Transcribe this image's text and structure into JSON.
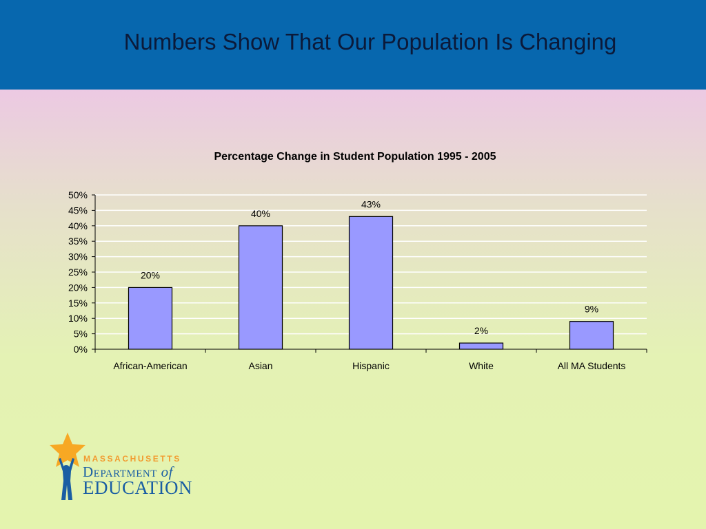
{
  "slide": {
    "title": "Numbers Show That Our Population Is Changing",
    "header_color": "#0767ae"
  },
  "chart_data": {
    "type": "bar",
    "title": "Percentage Change in Student Population 1995 - 2005",
    "xlabel": "",
    "ylabel": "",
    "categories": [
      "African-American",
      "Asian",
      "Hispanic",
      "White",
      "All MA Students"
    ],
    "values": [
      20,
      40,
      43,
      2,
      9
    ],
    "data_labels": [
      "20%",
      "40%",
      "43%",
      "2%",
      "9%"
    ],
    "ylim": [
      0,
      50
    ],
    "yticks": [
      0,
      5,
      10,
      15,
      20,
      25,
      30,
      35,
      40,
      45,
      50
    ],
    "ytick_labels": [
      "0%",
      "5%",
      "10%",
      "15%",
      "20%",
      "25%",
      "30%",
      "35%",
      "40%",
      "45%",
      "50%"
    ],
    "bar_color": "#9999ff",
    "grid": true,
    "legend": false
  },
  "logo": {
    "line1": "MASSACHUSETTS",
    "line2_main": "Department",
    "line2_of": "of",
    "line3": "EDUCATION",
    "star_color": "#f7a824",
    "text_color": "#1a5ea3"
  }
}
